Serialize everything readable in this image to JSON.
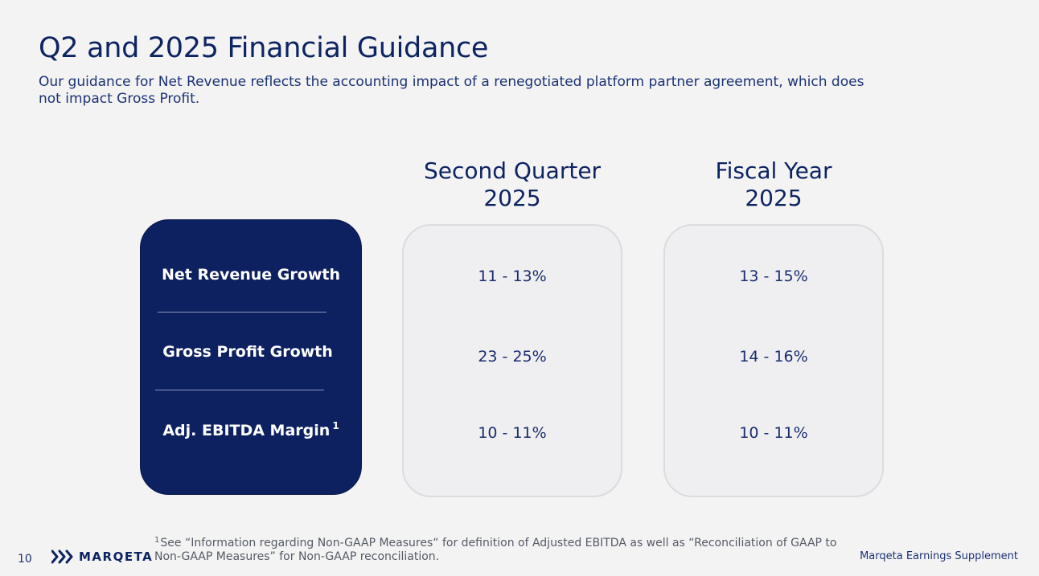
{
  "slide": {
    "title": "Q2 and 2025 Financial Guidance",
    "subtitle": "Our guidance for Net Revenue reflects the accounting impact of a renegotiated platform partner agreement, which does not impact Gross Profit."
  },
  "columns": {
    "q2": {
      "line1": "Second Quarter",
      "line2": "2025"
    },
    "fy": {
      "line1": "Fiscal Year",
      "line2": "2025"
    }
  },
  "rows": [
    {
      "label": "Net Revenue Growth",
      "sup": "",
      "q2": "11 - 13%",
      "fy": "13 - 15%"
    },
    {
      "label": "Gross Profit Growth",
      "sup": "",
      "q2": "23 - 25%",
      "fy": "14 - 16%"
    },
    {
      "label": "Adj. EBITDA Margin",
      "sup": "1",
      "q2": "10 - 11%",
      "fy": "10 - 11%"
    }
  ],
  "footer": {
    "footnote_mark": "1",
    "footnote": "See “Information regarding Non-GAAP Measures“ for definition of Adjusted EBITDA as well as “Reconciliation of GAAP to Non-GAAP Measures” for Non-GAAP reconciliation.",
    "page_number": "10",
    "logo_text": "MARQETA",
    "logo_icon": "marqeta-chevrons-icon",
    "supplement": "Marqeta Earnings Supplement"
  },
  "colors": {
    "navy": "#0d2060",
    "text": "#0d2462",
    "box_fill": "#efeff1",
    "box_border": "#dcdce0"
  }
}
